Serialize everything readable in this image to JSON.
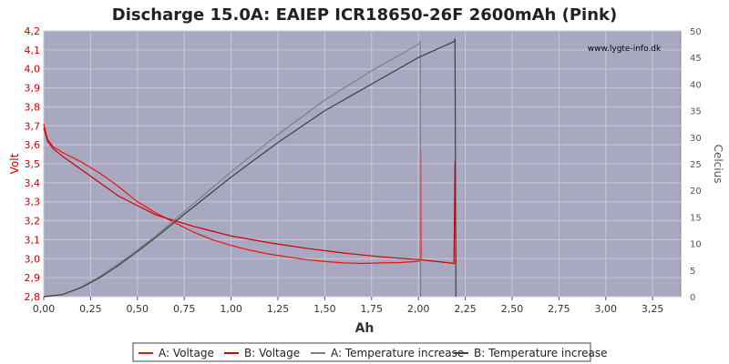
{
  "chart_data": {
    "type": "line",
    "title": "Discharge 15.0A: EAIEP ICR18650-26F 2600mAh (Pink)",
    "xlabel": "Ah",
    "ylabel": "Volt",
    "y2label": "Celcius",
    "watermark": "www.lygte-info.dk",
    "xlim": [
      0,
      3.4
    ],
    "ylim": [
      2.8,
      4.2
    ],
    "y2lim": [
      0,
      50
    ],
    "x_ticks": [
      "0,00",
      "0,25",
      "0,50",
      "0,75",
      "1,00",
      "1,25",
      "1,50",
      "1,75",
      "2,00",
      "2,25",
      "2,50",
      "2,75",
      "3,00",
      "3,25"
    ],
    "y_ticks": [
      "2,8",
      "2,9",
      "3,0",
      "3,1",
      "3,2",
      "3,3",
      "3,4",
      "3,5",
      "3,6",
      "3,7",
      "3,8",
      "3,9",
      "4,0",
      "4,1",
      "4,2"
    ],
    "y2_ticks": [
      "0",
      "5",
      "10",
      "15",
      "20",
      "25",
      "30",
      "35",
      "40",
      "45",
      "50"
    ],
    "grid": true,
    "legend_position": "bottom",
    "series": [
      {
        "name": "A: Voltage",
        "axis": "left",
        "color": "#ee1111",
        "width": 1.2,
        "points": [
          [
            0,
            3.71
          ],
          [
            0.02,
            3.63
          ],
          [
            0.05,
            3.59
          ],
          [
            0.1,
            3.56
          ],
          [
            0.2,
            3.51
          ],
          [
            0.3,
            3.45
          ],
          [
            0.4,
            3.38
          ],
          [
            0.5,
            3.3
          ],
          [
            0.6,
            3.24
          ],
          [
            0.7,
            3.19
          ],
          [
            0.8,
            3.14
          ],
          [
            0.9,
            3.1
          ],
          [
            1.0,
            3.07
          ],
          [
            1.1,
            3.045
          ],
          [
            1.2,
            3.025
          ],
          [
            1.3,
            3.01
          ],
          [
            1.4,
            2.995
          ],
          [
            1.5,
            2.985
          ],
          [
            1.6,
            2.978
          ],
          [
            1.7,
            2.975
          ],
          [
            1.8,
            2.978
          ],
          [
            1.9,
            2.98
          ],
          [
            1.99,
            2.985
          ],
          [
            2.01,
            2.99
          ],
          [
            2.012,
            3.57
          ],
          [
            2.014,
            2.995
          ]
        ]
      },
      {
        "name": "B: Voltage",
        "axis": "left",
        "color": "#cc0000",
        "width": 1.2,
        "points": [
          [
            0,
            3.69
          ],
          [
            0.02,
            3.62
          ],
          [
            0.05,
            3.58
          ],
          [
            0.1,
            3.54
          ],
          [
            0.2,
            3.47
          ],
          [
            0.3,
            3.4
          ],
          [
            0.4,
            3.33
          ],
          [
            0.5,
            3.28
          ],
          [
            0.6,
            3.23
          ],
          [
            0.7,
            3.2
          ],
          [
            0.8,
            3.17
          ],
          [
            0.9,
            3.145
          ],
          [
            1.0,
            3.12
          ],
          [
            1.2,
            3.085
          ],
          [
            1.4,
            3.055
          ],
          [
            1.6,
            3.03
          ],
          [
            1.8,
            3.01
          ],
          [
            2.0,
            2.995
          ],
          [
            2.1,
            2.985
          ],
          [
            2.19,
            2.975
          ],
          [
            2.195,
            3.51
          ],
          [
            2.2,
            2.975
          ]
        ]
      },
      {
        "name": "A: Temperature increase",
        "axis": "right",
        "color": "#808080",
        "width": 1.2,
        "points": [
          [
            0,
            0
          ],
          [
            0.1,
            0.4
          ],
          [
            0.2,
            1.8
          ],
          [
            0.3,
            3.8
          ],
          [
            0.4,
            6.2
          ],
          [
            0.5,
            8.8
          ],
          [
            0.6,
            11.5
          ],
          [
            0.75,
            16
          ],
          [
            1.0,
            23.5
          ],
          [
            1.25,
            30.5
          ],
          [
            1.5,
            37
          ],
          [
            1.75,
            42.5
          ],
          [
            2.0,
            47.5
          ],
          [
            2.01,
            48
          ],
          [
            2.012,
            0
          ]
        ]
      },
      {
        "name": "B: Temperature increase",
        "axis": "right",
        "color": "#404040",
        "width": 1.2,
        "points": [
          [
            0,
            0
          ],
          [
            0.1,
            0.4
          ],
          [
            0.2,
            1.7
          ],
          [
            0.3,
            3.6
          ],
          [
            0.4,
            5.9
          ],
          [
            0.5,
            8.5
          ],
          [
            0.6,
            11.2
          ],
          [
            0.75,
            15.5
          ],
          [
            1.0,
            22.5
          ],
          [
            1.25,
            29
          ],
          [
            1.5,
            35
          ],
          [
            1.75,
            40
          ],
          [
            2.0,
            45
          ],
          [
            2.19,
            48
          ],
          [
            2.195,
            48.5
          ],
          [
            2.2,
            0
          ]
        ]
      }
    ],
    "colors": {
      "plot_bg": "#a8a8c0",
      "grid": "#c8c8d8",
      "left_axis": "#cc0000",
      "right_axis": "#555555"
    }
  }
}
